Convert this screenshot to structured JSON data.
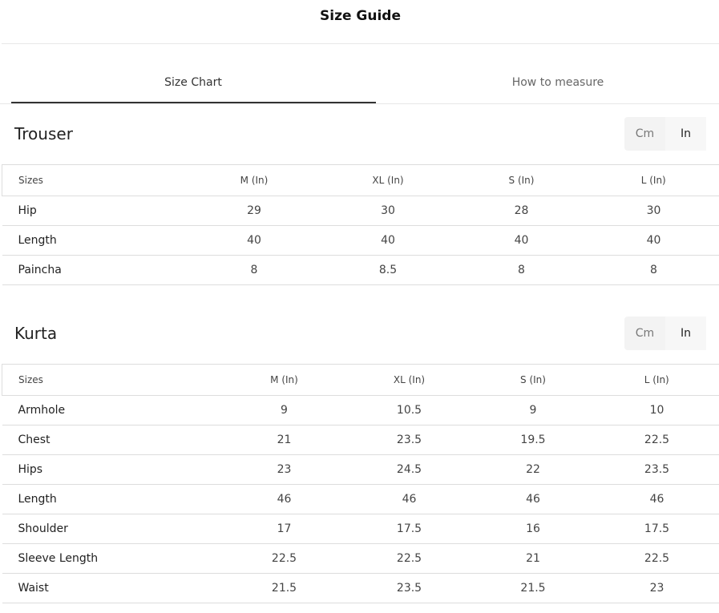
{
  "header": {
    "title": "Size Guide"
  },
  "tabs": [
    "Size Chart",
    "How to measure"
  ],
  "sections": [
    {
      "title": "Trouser",
      "units": [
        "Cm",
        "In"
      ],
      "columns": [
        "Sizes",
        "M (In)",
        "XL (In)",
        "S (In)",
        "L (In)"
      ],
      "rows": [
        [
          "Hip",
          29,
          30,
          28,
          30
        ],
        [
          "Length",
          40,
          40,
          40,
          40
        ],
        [
          "Paincha",
          8,
          8.5,
          8,
          8
        ]
      ]
    },
    {
      "title": "Kurta",
      "units": [
        "Cm",
        "In"
      ],
      "columns": [
        "Sizes",
        "M (In)",
        "XL (In)",
        "S (In)",
        "L (In)"
      ],
      "rows": [
        [
          "Armhole",
          9,
          10.5,
          9,
          10
        ],
        [
          "Chest",
          21,
          23.5,
          19.5,
          22.5
        ],
        [
          "Hips",
          23,
          24.5,
          22,
          23.5
        ],
        [
          "Length",
          46,
          46,
          46,
          46
        ],
        [
          "Shoulder",
          17,
          17.5,
          16,
          17.5
        ],
        [
          "Sleeve Length",
          22.5,
          22.5,
          21,
          22.5
        ],
        [
          "Waist",
          21.5,
          23.5,
          21.5,
          23
        ]
      ]
    }
  ]
}
